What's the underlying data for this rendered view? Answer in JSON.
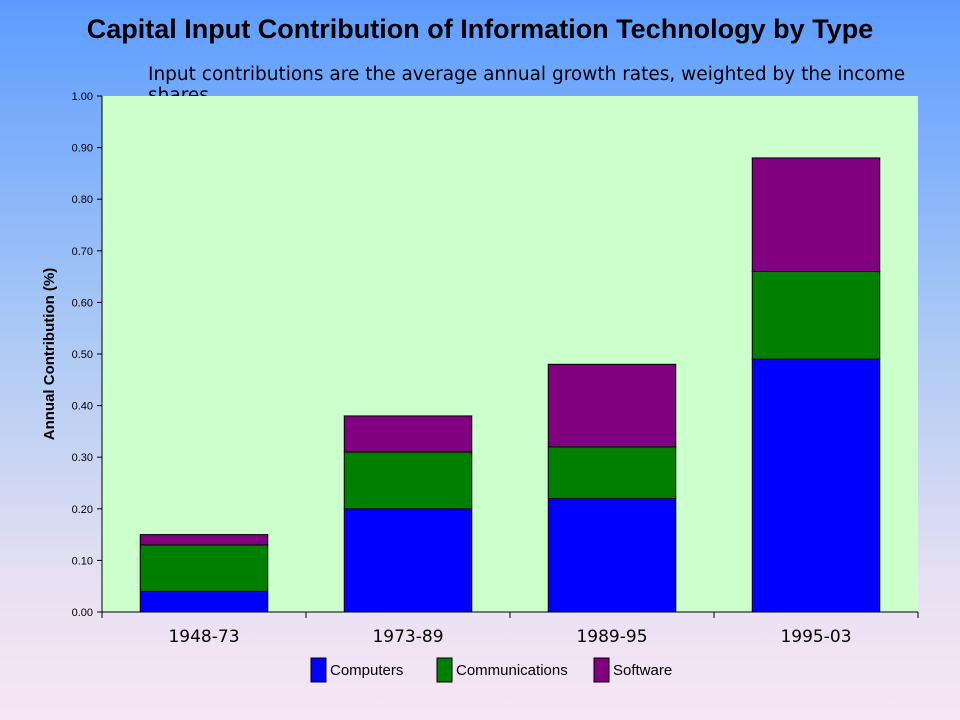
{
  "chart_data": {
    "type": "bar",
    "stacked": true,
    "title": "Capital Input Contribution of Information Technology by Type",
    "subtitle": "Input contributions are the average annual growth rates, weighted by the income shares.",
    "xlabel": "",
    "ylabel": "Annual Contribution (%)",
    "ylim": [
      0,
      1.0
    ],
    "ytick_step": 0.1,
    "ytick_labels": [
      "0.00",
      "0.10",
      "0.20",
      "0.30",
      "0.40",
      "0.50",
      "0.60",
      "0.70",
      "0.80",
      "0.90",
      "1.00"
    ],
    "categories": [
      "1948-73",
      "1973-89",
      "1989-95",
      "1995-03"
    ],
    "series": [
      {
        "name": "Computers",
        "color": "#0000ff",
        "values": [
          0.04,
          0.2,
          0.22,
          0.49
        ]
      },
      {
        "name": "Communications",
        "color": "#008000",
        "values": [
          0.09,
          0.11,
          0.1,
          0.17
        ]
      },
      {
        "name": "Software",
        "color": "#800080",
        "values": [
          0.02,
          0.07,
          0.16,
          0.22
        ]
      }
    ],
    "plot_background": "#ccffcc",
    "grid": false,
    "legend_position": "bottom"
  }
}
